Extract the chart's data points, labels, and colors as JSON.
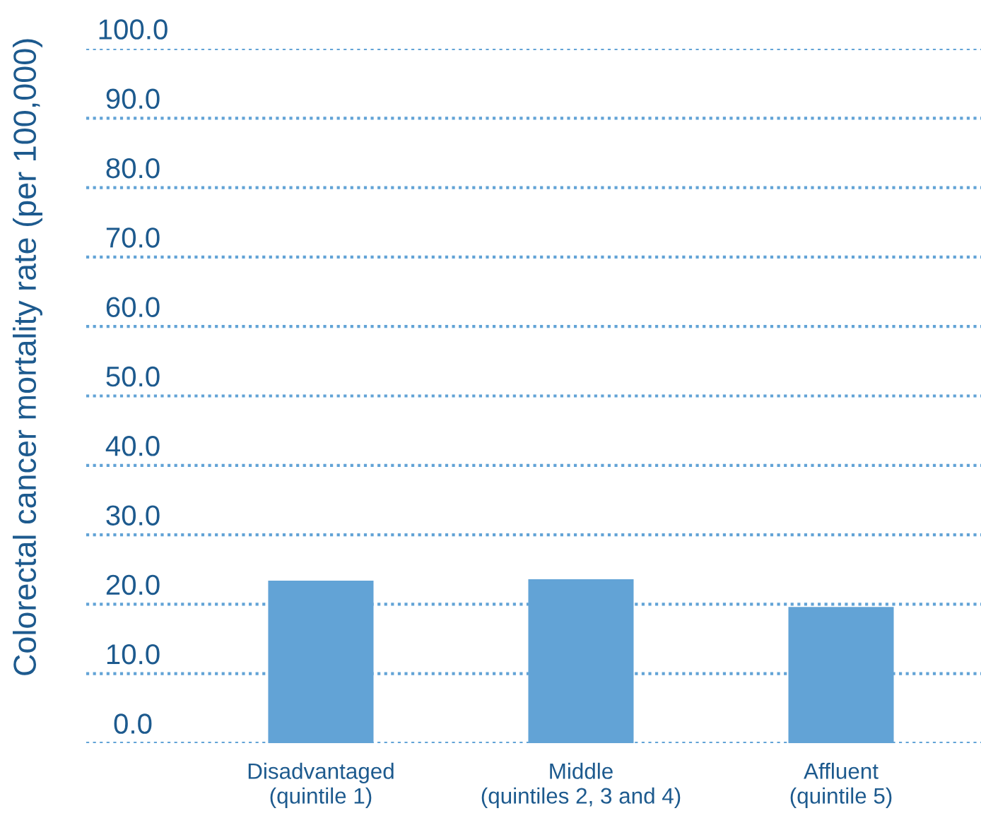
{
  "chart_data": {
    "type": "bar",
    "ylabel": "Colorectal cancer mortality rate (per 100,000)",
    "categories": [
      "Disadvantaged\n(quintile 1)",
      "Middle\n(quintiles 2, 3 and 4)",
      "Affluent\n(quintile 5)"
    ],
    "values": [
      23.4,
      23.6,
      19.6
    ],
    "color": "#62a3d6",
    "ylim": [
      0,
      100
    ],
    "yticks": [
      {
        "value": 0,
        "label": "0.0"
      },
      {
        "value": 10,
        "label": "10.0"
      },
      {
        "value": 20,
        "label": "20.0"
      },
      {
        "value": 30,
        "label": "30.0"
      },
      {
        "value": 40,
        "label": "40.0"
      },
      {
        "value": 50,
        "label": "50.0"
      },
      {
        "value": 60,
        "label": "60.0"
      },
      {
        "value": 70,
        "label": "70.0"
      },
      {
        "value": 80,
        "label": "80.0"
      },
      {
        "value": 90,
        "label": "90.0"
      },
      {
        "value": 100,
        "label": "100.0"
      }
    ],
    "grid": "y"
  }
}
